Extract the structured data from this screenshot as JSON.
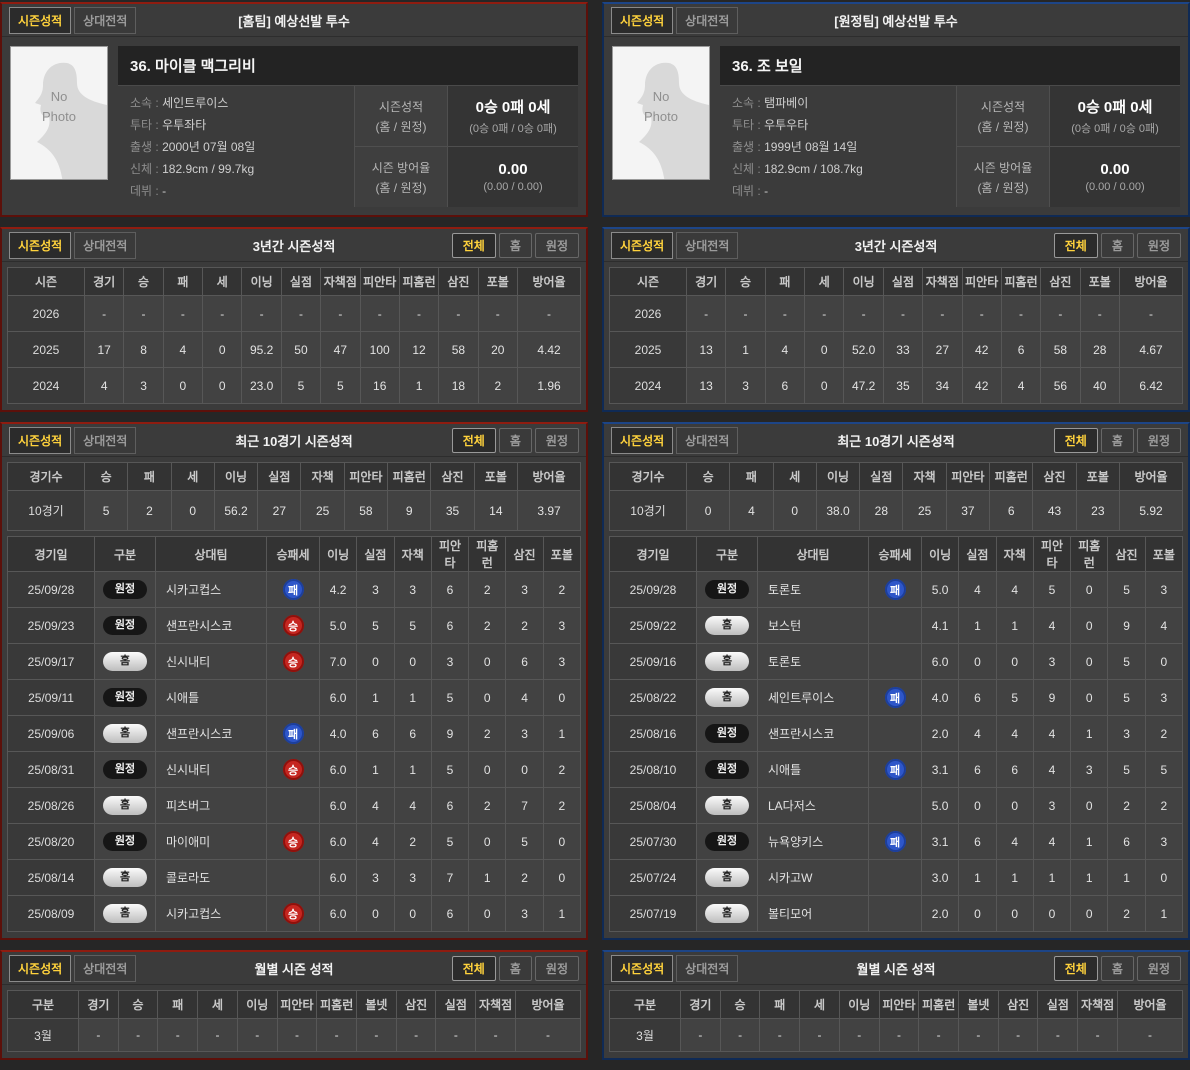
{
  "labels": {
    "tab_season": "시즌성적",
    "tab_versus": "상대전적",
    "filter_all": "전체",
    "filter_home": "홈",
    "filter_away": "원정",
    "no_photo": "No\nPhoto"
  },
  "colors": {
    "home_accent": "#8f1c10",
    "away_accent": "#1d4587",
    "active_tab_text": "#ffd23c",
    "win_badge": "#c52620",
    "loss_badge": "#2e56c9"
  },
  "sides": [
    {
      "card": {
        "title": "[홈팀] 예상선발 투수",
        "player_name": "36. 마이클 맥그리비",
        "info": [
          {
            "label": "소속 :",
            "value": "세인트루이스"
          },
          {
            "label": "투타 :",
            "value": "우투좌타"
          },
          {
            "label": "출생 :",
            "value": "2000년 07월 08일"
          },
          {
            "label": "신체 :",
            "value": "182.9cm / 99.7kg"
          },
          {
            "label": "데뷔 :",
            "value": "-"
          }
        ],
        "record_label_1": "시즌성적",
        "record_label_2": "(홈 / 원정)",
        "record_main": "0승 0패 0세",
        "record_sub": "(0승 0패 / 0승 0패)",
        "era_label_1": "시즌 방어율",
        "era_label_2": "(홈 / 원정)",
        "era_main": "0.00",
        "era_sub": "(0.00 / 0.00)"
      },
      "three_year": {
        "title": "3년간 시즌성적",
        "columns": [
          "시즌",
          "경기",
          "승",
          "패",
          "세",
          "이닝",
          "실점",
          "자책점",
          "피안타",
          "피홈런",
          "삼진",
          "포볼",
          "방어율"
        ],
        "rows": [
          [
            "2026",
            "-",
            "-",
            "-",
            "-",
            "-",
            "-",
            "-",
            "-",
            "-",
            "-",
            "-",
            "-"
          ],
          [
            "2025",
            "17",
            "8",
            "4",
            "0",
            "95.2",
            "50",
            "47",
            "100",
            "12",
            "58",
            "20",
            "4.42"
          ],
          [
            "2024",
            "4",
            "3",
            "0",
            "0",
            "23.0",
            "5",
            "5",
            "16",
            "1",
            "18",
            "2",
            "1.96"
          ]
        ]
      },
      "recent": {
        "title": "최근 10경기 시즌성적",
        "summary_columns": [
          "경기수",
          "승",
          "패",
          "세",
          "이닝",
          "실점",
          "자책",
          "피안타",
          "피홈런",
          "삼진",
          "포볼",
          "방어율"
        ],
        "summary_row": [
          "10경기",
          "5",
          "2",
          "0",
          "56.2",
          "27",
          "25",
          "58",
          "9",
          "35",
          "14",
          "3.97"
        ],
        "game_columns": [
          "경기일",
          "구분",
          "상대팀",
          "승패세",
          "이닝",
          "실점",
          "자책",
          "피안타",
          "피홈런",
          "삼진",
          "포볼"
        ],
        "games": [
          {
            "date": "25/09/28",
            "venue": "원정",
            "team": "시카고컵스",
            "result": "패",
            "stats": [
              "4.2",
              "3",
              "3",
              "6",
              "2",
              "3",
              "2"
            ]
          },
          {
            "date": "25/09/23",
            "venue": "원정",
            "team": "샌프란시스코",
            "result": "승",
            "stats": [
              "5.0",
              "5",
              "5",
              "6",
              "2",
              "2",
              "3"
            ]
          },
          {
            "date": "25/09/17",
            "venue": "홈",
            "team": "신시내티",
            "result": "승",
            "stats": [
              "7.0",
              "0",
              "0",
              "3",
              "0",
              "6",
              "3"
            ]
          },
          {
            "date": "25/09/11",
            "venue": "원정",
            "team": "시애틀",
            "result": "",
            "stats": [
              "6.0",
              "1",
              "1",
              "5",
              "0",
              "4",
              "0"
            ]
          },
          {
            "date": "25/09/06",
            "venue": "홈",
            "team": "샌프란시스코",
            "result": "패",
            "stats": [
              "4.0",
              "6",
              "6",
              "9",
              "2",
              "3",
              "1"
            ]
          },
          {
            "date": "25/08/31",
            "venue": "원정",
            "team": "신시내티",
            "result": "승",
            "stats": [
              "6.0",
              "1",
              "1",
              "5",
              "0",
              "0",
              "2"
            ]
          },
          {
            "date": "25/08/26",
            "venue": "홈",
            "team": "피츠버그",
            "result": "",
            "stats": [
              "6.0",
              "4",
              "4",
              "6",
              "2",
              "7",
              "2"
            ]
          },
          {
            "date": "25/08/20",
            "venue": "원정",
            "team": "마이애미",
            "result": "승",
            "stats": [
              "6.0",
              "4",
              "2",
              "5",
              "0",
              "5",
              "0"
            ]
          },
          {
            "date": "25/08/14",
            "venue": "홈",
            "team": "콜로라도",
            "result": "",
            "stats": [
              "6.0",
              "3",
              "3",
              "7",
              "1",
              "2",
              "0"
            ]
          },
          {
            "date": "25/08/09",
            "venue": "홈",
            "team": "시카고컵스",
            "result": "승",
            "stats": [
              "6.0",
              "0",
              "0",
              "6",
              "0",
              "3",
              "1"
            ]
          }
        ]
      },
      "monthly": {
        "title": "월별 시즌 성적",
        "columns": [
          "구분",
          "경기",
          "승",
          "패",
          "세",
          "이닝",
          "피안타",
          "피홈런",
          "볼넷",
          "삼진",
          "실점",
          "자책점",
          "방어율"
        ],
        "rows": [
          [
            "3월",
            "-",
            "-",
            "-",
            "-",
            "-",
            "-",
            "-",
            "-",
            "-",
            "-",
            "-",
            "-"
          ]
        ]
      }
    },
    {
      "card": {
        "title": "[원정팀] 예상선발 투수",
        "player_name": "36. 조 보일",
        "info": [
          {
            "label": "소속 :",
            "value": "탬파베이"
          },
          {
            "label": "투타 :",
            "value": "우투우타"
          },
          {
            "label": "출생 :",
            "value": "1999년 08월 14일"
          },
          {
            "label": "신체 :",
            "value": "182.9cm / 108.7kg"
          },
          {
            "label": "데뷔 :",
            "value": "-"
          }
        ],
        "record_label_1": "시즌성적",
        "record_label_2": "(홈 / 원정)",
        "record_main": "0승 0패 0세",
        "record_sub": "(0승 0패 / 0승 0패)",
        "era_label_1": "시즌 방어율",
        "era_label_2": "(홈 / 원정)",
        "era_main": "0.00",
        "era_sub": "(0.00 / 0.00)"
      },
      "three_year": {
        "title": "3년간 시즌성적",
        "columns": [
          "시즌",
          "경기",
          "승",
          "패",
          "세",
          "이닝",
          "실점",
          "자책점",
          "피안타",
          "피홈런",
          "삼진",
          "포볼",
          "방어율"
        ],
        "rows": [
          [
            "2026",
            "-",
            "-",
            "-",
            "-",
            "-",
            "-",
            "-",
            "-",
            "-",
            "-",
            "-",
            "-"
          ],
          [
            "2025",
            "13",
            "1",
            "4",
            "0",
            "52.0",
            "33",
            "27",
            "42",
            "6",
            "58",
            "28",
            "4.67"
          ],
          [
            "2024",
            "13",
            "3",
            "6",
            "0",
            "47.2",
            "35",
            "34",
            "42",
            "4",
            "56",
            "40",
            "6.42"
          ]
        ]
      },
      "recent": {
        "title": "최근 10경기 시즌성적",
        "summary_columns": [
          "경기수",
          "승",
          "패",
          "세",
          "이닝",
          "실점",
          "자책",
          "피안타",
          "피홈런",
          "삼진",
          "포볼",
          "방어율"
        ],
        "summary_row": [
          "10경기",
          "0",
          "4",
          "0",
          "38.0",
          "28",
          "25",
          "37",
          "6",
          "43",
          "23",
          "5.92"
        ],
        "game_columns": [
          "경기일",
          "구분",
          "상대팀",
          "승패세",
          "이닝",
          "실점",
          "자책",
          "피안타",
          "피홈런",
          "삼진",
          "포볼"
        ],
        "games": [
          {
            "date": "25/09/28",
            "venue": "원정",
            "team": "토론토",
            "result": "패",
            "stats": [
              "5.0",
              "4",
              "4",
              "5",
              "0",
              "5",
              "3"
            ]
          },
          {
            "date": "25/09/22",
            "venue": "홈",
            "team": "보스턴",
            "result": "",
            "stats": [
              "4.1",
              "1",
              "1",
              "4",
              "0",
              "9",
              "4"
            ]
          },
          {
            "date": "25/09/16",
            "venue": "홈",
            "team": "토론토",
            "result": "",
            "stats": [
              "6.0",
              "0",
              "0",
              "3",
              "0",
              "5",
              "0"
            ]
          },
          {
            "date": "25/08/22",
            "venue": "홈",
            "team": "세인트루이스",
            "result": "패",
            "stats": [
              "4.0",
              "6",
              "5",
              "9",
              "0",
              "5",
              "3"
            ]
          },
          {
            "date": "25/08/16",
            "venue": "원정",
            "team": "샌프란시스코",
            "result": "",
            "stats": [
              "2.0",
              "4",
              "4",
              "4",
              "1",
              "3",
              "2"
            ]
          },
          {
            "date": "25/08/10",
            "venue": "원정",
            "team": "시애틀",
            "result": "패",
            "stats": [
              "3.1",
              "6",
              "6",
              "4",
              "3",
              "5",
              "5"
            ]
          },
          {
            "date": "25/08/04",
            "venue": "홈",
            "team": "LA다저스",
            "result": "",
            "stats": [
              "5.0",
              "0",
              "0",
              "3",
              "0",
              "2",
              "2"
            ]
          },
          {
            "date": "25/07/30",
            "venue": "원정",
            "team": "뉴욕양키스",
            "result": "패",
            "stats": [
              "3.1",
              "6",
              "4",
              "4",
              "1",
              "6",
              "3"
            ]
          },
          {
            "date": "25/07/24",
            "venue": "홈",
            "team": "시카고W",
            "result": "",
            "stats": [
              "3.0",
              "1",
              "1",
              "1",
              "1",
              "1",
              "0"
            ]
          },
          {
            "date": "25/07/19",
            "venue": "홈",
            "team": "볼티모어",
            "result": "",
            "stats": [
              "2.0",
              "0",
              "0",
              "0",
              "0",
              "2",
              "1"
            ]
          }
        ]
      },
      "monthly": {
        "title": "월별 시즌 성적",
        "columns": [
          "구분",
          "경기",
          "승",
          "패",
          "세",
          "이닝",
          "피안타",
          "피홈런",
          "볼넷",
          "삼진",
          "실점",
          "자책점",
          "방어율"
        ],
        "rows": [
          [
            "3월",
            "-",
            "-",
            "-",
            "-",
            "-",
            "-",
            "-",
            "-",
            "-",
            "-",
            "-",
            "-"
          ]
        ]
      }
    }
  ]
}
